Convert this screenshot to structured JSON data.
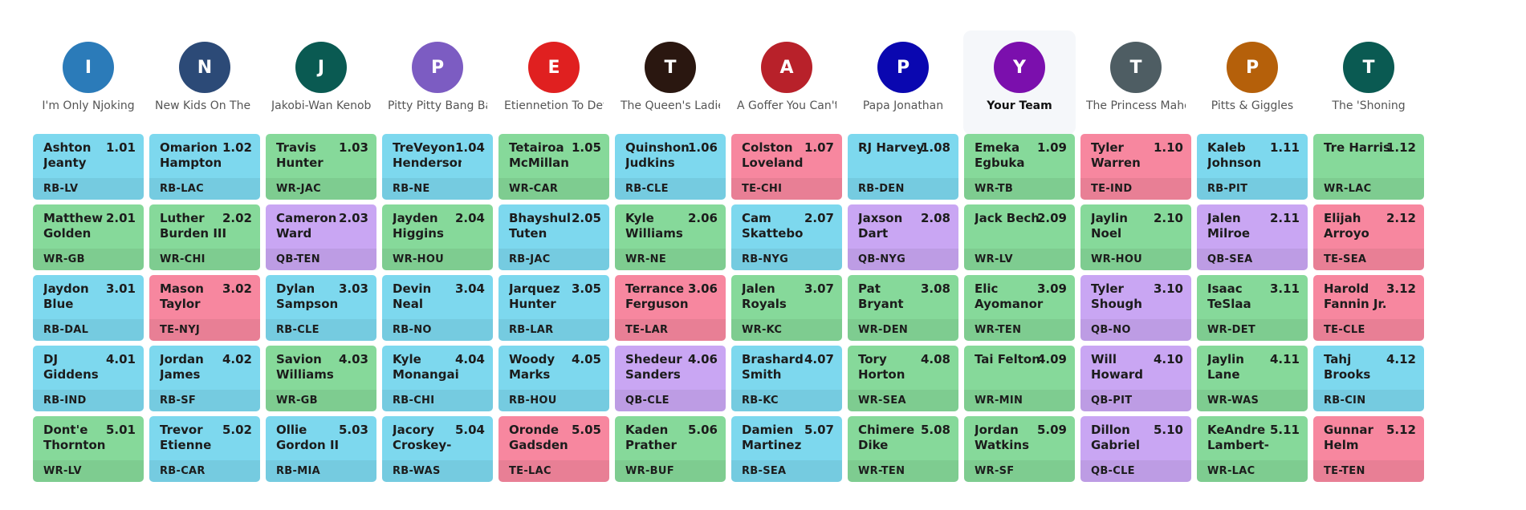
{
  "teams": [
    {
      "initial": "I",
      "name": "I'm Only Njoking",
      "color": "#2b7bb9"
    },
    {
      "initial": "N",
      "name": "New Kids On The Block",
      "color": "#2c4a77"
    },
    {
      "initial": "J",
      "name": "Jakobi-Wan Kenobi",
      "color": "#0a5a52"
    },
    {
      "initial": "P",
      "name": "Pitty Pitty Bang Bang",
      "color": "#7c5cc2"
    },
    {
      "initial": "E",
      "name": "Etiennetion To Detail",
      "color": "#e02020"
    },
    {
      "initial": "T",
      "name": "The Queen's Ladies",
      "color": "#2a1710"
    },
    {
      "initial": "A",
      "name": "A Goffer You Can't Refuse",
      "color": "#b8212a"
    },
    {
      "initial": "P",
      "name": "Papa Jonathan",
      "color": "#0a07b0"
    },
    {
      "initial": "Y",
      "name": "Your Team",
      "color": "#7b0fad",
      "highlight": true
    },
    {
      "initial": "T",
      "name": "The Princess Mahomes",
      "color": "#4e5d63"
    },
    {
      "initial": "P",
      "name": "Pitts & Giggles",
      "color": "#b5600a"
    },
    {
      "initial": "T",
      "name": "The 'Shoning",
      "color": "#0a5a52"
    }
  ],
  "rounds": [
    [
      {
        "player": "Ashton Jeanty",
        "pick": "1.01",
        "pos": "RB",
        "team": "RB-LV"
      },
      {
        "player": "Omarion Hampton",
        "pick": "1.02",
        "pos": "RB",
        "team": "RB-LAC"
      },
      {
        "player": "Travis Hunter",
        "pick": "1.03",
        "pos": "WR",
        "team": "WR-JAC"
      },
      {
        "player": "TreVeyon Henderson",
        "pick": "1.04",
        "pos": "RB",
        "team": "RB-NE"
      },
      {
        "player": "Tetairoa McMillan",
        "pick": "1.05",
        "pos": "WR",
        "team": "WR-CAR"
      },
      {
        "player": "Quinshon Judkins",
        "pick": "1.06",
        "pos": "RB",
        "team": "RB-CLE"
      },
      {
        "player": "Colston Loveland",
        "pick": "1.07",
        "pos": "TE",
        "team": "TE-CHI"
      },
      {
        "player": "RJ Harvey",
        "pick": "1.08",
        "pos": "RB",
        "team": "RB-DEN"
      },
      {
        "player": "Emeka Egbuka",
        "pick": "1.09",
        "pos": "WR",
        "team": "WR-TB"
      },
      {
        "player": "Tyler Warren",
        "pick": "1.10",
        "pos": "TE",
        "team": "TE-IND"
      },
      {
        "player": "Kaleb Johnson",
        "pick": "1.11",
        "pos": "RB",
        "team": "RB-PIT"
      },
      {
        "player": "Tre Harris",
        "pick": "1.12",
        "pos": "WR",
        "team": "WR-LAC"
      }
    ],
    [
      {
        "player": "Matthew Golden",
        "pick": "2.01",
        "pos": "WR",
        "team": "WR-GB"
      },
      {
        "player": "Luther Burden III",
        "pick": "2.02",
        "pos": "WR",
        "team": "WR-CHI"
      },
      {
        "player": "Cameron Ward",
        "pick": "2.03",
        "pos": "QB",
        "team": "QB-TEN"
      },
      {
        "player": "Jayden Higgins",
        "pick": "2.04",
        "pos": "WR",
        "team": "WR-HOU"
      },
      {
        "player": "Bhayshul Tuten",
        "pick": "2.05",
        "pos": "RB",
        "team": "RB-JAC"
      },
      {
        "player": "Kyle Williams",
        "pick": "2.06",
        "pos": "WR",
        "team": "WR-NE"
      },
      {
        "player": "Cam Skattebo",
        "pick": "2.07",
        "pos": "RB",
        "team": "RB-NYG"
      },
      {
        "player": "Jaxson Dart",
        "pick": "2.08",
        "pos": "QB",
        "team": "QB-NYG"
      },
      {
        "player": "Jack Bech",
        "pick": "2.09",
        "pos": "WR",
        "team": "WR-LV"
      },
      {
        "player": "Jaylin Noel",
        "pick": "2.10",
        "pos": "WR",
        "team": "WR-HOU"
      },
      {
        "player": "Jalen Milroe",
        "pick": "2.11",
        "pos": "QB",
        "team": "QB-SEA"
      },
      {
        "player": "Elijah Arroyo",
        "pick": "2.12",
        "pos": "TE",
        "team": "TE-SEA"
      }
    ],
    [
      {
        "player": "Jaydon Blue",
        "pick": "3.01",
        "pos": "RB",
        "team": "RB-DAL"
      },
      {
        "player": "Mason Taylor",
        "pick": "3.02",
        "pos": "TE",
        "team": "TE-NYJ"
      },
      {
        "player": "Dylan Sampson",
        "pick": "3.03",
        "pos": "RB",
        "team": "RB-CLE"
      },
      {
        "player": "Devin Neal",
        "pick": "3.04",
        "pos": "RB",
        "team": "RB-NO"
      },
      {
        "player": "Jarquez Hunter",
        "pick": "3.05",
        "pos": "RB",
        "team": "RB-LAR"
      },
      {
        "player": "Terrance Ferguson",
        "pick": "3.06",
        "pos": "TE",
        "team": "TE-LAR"
      },
      {
        "player": "Jalen Royals",
        "pick": "3.07",
        "pos": "WR",
        "team": "WR-KC"
      },
      {
        "player": "Pat Bryant",
        "pick": "3.08",
        "pos": "WR",
        "team": "WR-DEN"
      },
      {
        "player": "Elic Ayomanor",
        "pick": "3.09",
        "pos": "WR",
        "team": "WR-TEN"
      },
      {
        "player": "Tyler Shough",
        "pick": "3.10",
        "pos": "QB",
        "team": "QB-NO"
      },
      {
        "player": "Isaac TeSlaa",
        "pick": "3.11",
        "pos": "WR",
        "team": "WR-DET"
      },
      {
        "player": "Harold Fannin Jr.",
        "pick": "3.12",
        "pos": "TE",
        "team": "TE-CLE"
      }
    ],
    [
      {
        "player": "DJ Giddens",
        "pick": "4.01",
        "pos": "RB",
        "team": "RB-IND"
      },
      {
        "player": "Jordan James",
        "pick": "4.02",
        "pos": "RB",
        "team": "RB-SF"
      },
      {
        "player": "Savion Williams",
        "pick": "4.03",
        "pos": "WR",
        "team": "WR-GB"
      },
      {
        "player": "Kyle Monangai",
        "pick": "4.04",
        "pos": "RB",
        "team": "RB-CHI"
      },
      {
        "player": "Woody Marks",
        "pick": "4.05",
        "pos": "RB",
        "team": "RB-HOU"
      },
      {
        "player": "Shedeur Sanders",
        "pick": "4.06",
        "pos": "QB",
        "team": "QB-CLE"
      },
      {
        "player": "Brashard Smith",
        "pick": "4.07",
        "pos": "RB",
        "team": "RB-KC"
      },
      {
        "player": "Tory Horton",
        "pick": "4.08",
        "pos": "WR",
        "team": "WR-SEA"
      },
      {
        "player": "Tai Felton",
        "pick": "4.09",
        "pos": "WR",
        "team": "WR-MIN"
      },
      {
        "player": "Will Howard",
        "pick": "4.10",
        "pos": "QB",
        "team": "QB-PIT"
      },
      {
        "player": "Jaylin Lane",
        "pick": "4.11",
        "pos": "WR",
        "team": "WR-WAS"
      },
      {
        "player": "Tahj Brooks",
        "pick": "4.12",
        "pos": "RB",
        "team": "RB-CIN"
      }
    ],
    [
      {
        "player": "Dont'e Thornton Jr.",
        "pick": "5.01",
        "pos": "WR",
        "team": "WR-LV"
      },
      {
        "player": "Trevor Etienne",
        "pick": "5.02",
        "pos": "RB",
        "team": "RB-CAR"
      },
      {
        "player": "Ollie Gordon II",
        "pick": "5.03",
        "pos": "RB",
        "team": "RB-MIA"
      },
      {
        "player": "Jacory Croskey-Merritt",
        "pick": "5.04",
        "pos": "RB",
        "team": "RB-WAS"
      },
      {
        "player": "Oronde Gadsden II",
        "pick": "5.05",
        "pos": "TE",
        "team": "TE-LAC"
      },
      {
        "player": "Kaden Prather",
        "pick": "5.06",
        "pos": "WR",
        "team": "WR-BUF"
      },
      {
        "player": "Damien Martinez",
        "pick": "5.07",
        "pos": "RB",
        "team": "RB-SEA"
      },
      {
        "player": "Chimere Dike",
        "pick": "5.08",
        "pos": "WR",
        "team": "WR-TEN"
      },
      {
        "player": "Jordan Watkins",
        "pick": "5.09",
        "pos": "WR",
        "team": "WR-SF"
      },
      {
        "player": "Dillon Gabriel",
        "pick": "5.10",
        "pos": "QB",
        "team": "QB-CLE"
      },
      {
        "player": "KeAndre Lambert-Smith",
        "pick": "5.11",
        "pos": "WR",
        "team": "WR-LAC"
      },
      {
        "player": "Gunnar Helm",
        "pick": "5.12",
        "pos": "TE",
        "team": "TE-TEN"
      }
    ]
  ]
}
